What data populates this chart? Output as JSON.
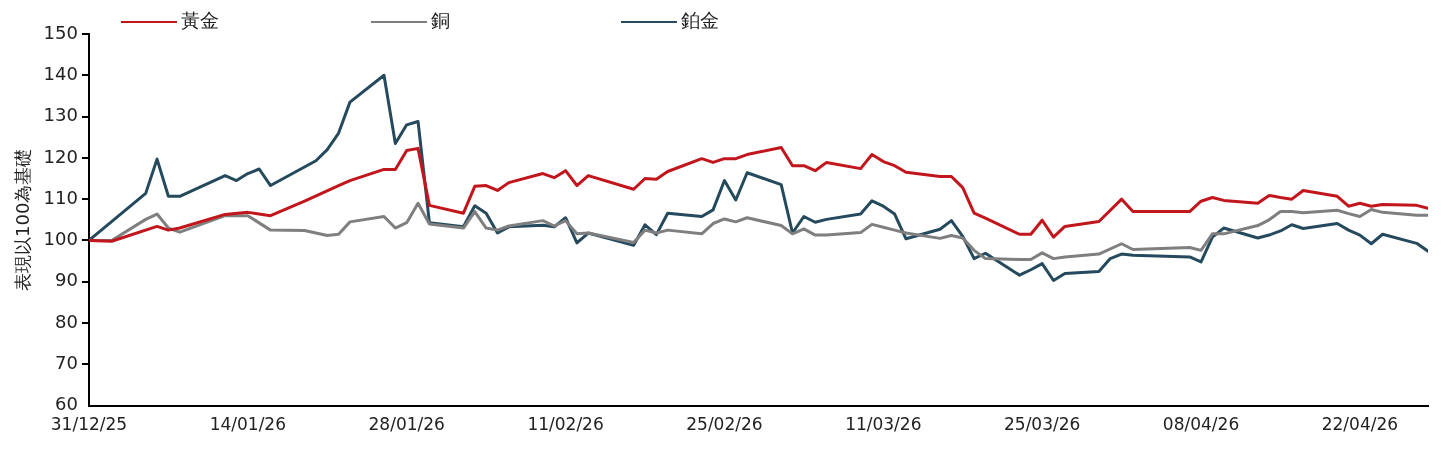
{
  "chart_data": {
    "type": "line",
    "ylabel": "表現以100為基礎",
    "legend": "top left",
    "grid": false,
    "marker": "none",
    "line_style": "solid",
    "xlim": [
      "2025-12-31",
      "2026-04-28"
    ],
    "xticks": [
      {
        "value": "2025-12-31",
        "label": "31/12/25"
      },
      {
        "value": "2026-01-14",
        "label": "14/01/26"
      },
      {
        "value": "2026-01-28",
        "label": "28/01/26"
      },
      {
        "value": "2026-02-11",
        "label": "11/02/26"
      },
      {
        "value": "2026-02-25",
        "label": "25/02/26"
      },
      {
        "value": "2026-03-11",
        "label": "11/03/26"
      },
      {
        "value": "2026-03-25",
        "label": "25/03/26"
      },
      {
        "value": "2026-04-08",
        "label": "08/04/26"
      },
      {
        "value": "2026-04-22",
        "label": "22/04/26"
      }
    ],
    "ylim": [
      60,
      150
    ],
    "yticks": [
      60,
      70,
      80,
      90,
      100,
      110,
      120,
      130,
      140,
      150
    ],
    "series": [
      {
        "name": "黃金",
        "color": "#c0161c",
        "x": [
          "2025-12-31",
          "2026-01-02",
          "2026-01-06",
          "2026-01-07",
          "2026-01-08",
          "2026-01-12",
          "2026-01-14",
          "2026-01-16",
          "2026-01-19",
          "2026-01-22",
          "2026-01-23",
          "2026-01-26",
          "2026-01-27",
          "2026-01-28",
          "2026-01-29",
          "2026-01-30",
          "2026-02-02",
          "2026-02-03",
          "2026-02-04",
          "2026-02-05",
          "2026-02-06",
          "2026-02-09",
          "2026-02-10",
          "2026-02-11",
          "2026-02-12",
          "2026-02-13",
          "2026-02-17",
          "2026-02-18",
          "2026-02-19",
          "2026-02-20",
          "2026-02-23",
          "2026-02-24",
          "2026-02-25",
          "2026-02-26",
          "2026-02-27",
          "2026-03-02",
          "2026-03-03",
          "2026-03-04",
          "2026-03-05",
          "2026-03-06",
          "2026-03-09",
          "2026-03-10",
          "2026-03-11",
          "2026-03-12",
          "2026-03-13",
          "2026-03-16",
          "2026-03-17",
          "2026-03-18",
          "2026-03-19",
          "2026-03-20",
          "2026-03-23",
          "2026-03-24",
          "2026-03-25",
          "2026-03-26",
          "2026-03-27",
          "2026-03-30",
          "2026-04-01",
          "2026-04-02",
          "2026-04-07",
          "2026-04-08",
          "2026-04-09",
          "2026-04-10",
          "2026-04-13",
          "2026-04-14",
          "2026-04-15",
          "2026-04-16",
          "2026-04-17",
          "2026-04-20",
          "2026-04-21",
          "2026-04-22",
          "2026-04-23",
          "2026-04-24",
          "2026-04-27",
          "2026-04-28"
        ],
        "values": [
          100,
          99.8,
          103.4,
          102.5,
          103,
          106.3,
          106.8,
          106,
          109.5,
          113.3,
          114.5,
          117.2,
          117.2,
          121.8,
          122.3,
          108.5,
          106.6,
          113.1,
          113.3,
          112.1,
          114,
          116.2,
          115.2,
          116.9,
          113.3,
          115.7,
          112.4,
          115,
          114.8,
          116.7,
          119.8,
          118.9,
          119.8,
          119.8,
          120.8,
          122.5,
          118.1,
          118.1,
          116.9,
          118.9,
          117.4,
          120.8,
          119.1,
          118.1,
          116.5,
          115.5,
          115.5,
          112.8,
          106.6,
          105.4,
          101.5,
          101.5,
          104.9,
          100.8,
          103.4,
          104.6,
          110,
          107,
          107,
          109.5,
          110.4,
          109.7,
          109,
          110.9,
          110.4,
          110,
          112.1,
          110.7,
          108.3,
          109,
          108.3,
          108.7,
          108.5,
          107.8
        ]
      },
      {
        "name": "銅",
        "color": "#7f7f7f",
        "x": [
          "2025-12-31",
          "2026-01-02",
          "2026-01-05",
          "2026-01-06",
          "2026-01-07",
          "2026-01-08",
          "2026-01-12",
          "2026-01-14",
          "2026-01-16",
          "2026-01-19",
          "2026-01-21",
          "2026-01-22",
          "2026-01-23",
          "2026-01-26",
          "2026-01-27",
          "2026-01-28",
          "2026-01-29",
          "2026-01-30",
          "2026-02-02",
          "2026-02-03",
          "2026-02-04",
          "2026-02-05",
          "2026-02-06",
          "2026-02-09",
          "2026-02-10",
          "2026-02-11",
          "2026-02-12",
          "2026-02-13",
          "2026-02-17",
          "2026-02-18",
          "2026-02-19",
          "2026-02-20",
          "2026-02-23",
          "2026-02-24",
          "2026-02-25",
          "2026-02-26",
          "2026-02-27",
          "2026-03-02",
          "2026-03-03",
          "2026-03-04",
          "2026-03-05",
          "2026-03-06",
          "2026-03-09",
          "2026-03-10",
          "2026-03-11",
          "2026-03-12",
          "2026-03-13",
          "2026-03-16",
          "2026-03-17",
          "2026-03-18",
          "2026-03-19",
          "2026-03-20",
          "2026-03-23",
          "2026-03-24",
          "2026-03-25",
          "2026-03-26",
          "2026-03-27",
          "2026-03-30",
          "2026-04-01",
          "2026-04-02",
          "2026-04-07",
          "2026-04-08",
          "2026-04-09",
          "2026-04-10",
          "2026-04-13",
          "2026-04-14",
          "2026-04-15",
          "2026-04-16",
          "2026-04-17",
          "2026-04-20",
          "2026-04-21",
          "2026-04-22",
          "2026-04-23",
          "2026-04-24",
          "2026-04-27",
          "2026-04-28"
        ],
        "values": [
          100,
          100,
          105.1,
          106.4,
          103,
          102,
          106,
          106,
          102.5,
          102.4,
          101.2,
          101.5,
          104.5,
          105.8,
          103,
          104.3,
          109,
          104,
          103,
          107,
          103,
          102.5,
          103.5,
          104.8,
          103.5,
          104.8,
          101.6,
          101.8,
          99.5,
          102.5,
          101.8,
          102.5,
          101.6,
          104.1,
          105.2,
          104.5,
          105.5,
          103.6,
          101.6,
          102.8,
          101.3,
          101.3,
          101.9,
          103.9,
          103.2,
          102.5,
          101.8,
          100.5,
          101.2,
          100.6,
          97.6,
          95.6,
          95.4,
          95.4,
          97,
          95.6,
          96,
          96.7,
          99.2,
          97.8,
          98.3,
          97.6,
          101.6,
          101.6,
          103.6,
          105,
          107,
          107,
          106.7,
          107.3,
          106.5,
          105.8,
          107.5,
          106.8,
          106.1,
          106.1
        ]
      },
      {
        "name": "鉑金",
        "color": "#254a5d",
        "x": [
          "2025-12-31",
          "2026-01-05",
          "2026-01-06",
          "2026-01-07",
          "2026-01-08",
          "2026-01-12",
          "2026-01-13",
          "2026-01-14",
          "2026-01-15",
          "2026-01-16",
          "2026-01-20",
          "2026-01-21",
          "2026-01-22",
          "2026-01-23",
          "2026-01-26",
          "2026-01-27",
          "2026-01-28",
          "2026-01-29",
          "2026-01-30",
          "2026-02-02",
          "2026-02-03",
          "2026-02-04",
          "2026-02-05",
          "2026-02-06",
          "2026-02-09",
          "2026-02-10",
          "2026-02-11",
          "2026-02-12",
          "2026-02-13",
          "2026-02-17",
          "2026-02-18",
          "2026-02-19",
          "2026-02-20",
          "2026-02-23",
          "2026-02-24",
          "2026-02-25",
          "2026-02-26",
          "2026-02-27",
          "2026-03-02",
          "2026-03-03",
          "2026-03-04",
          "2026-03-05",
          "2026-03-06",
          "2026-03-09",
          "2026-03-10",
          "2026-03-11",
          "2026-03-12",
          "2026-03-13",
          "2026-03-16",
          "2026-03-17",
          "2026-03-18",
          "2026-03-19",
          "2026-03-20",
          "2026-03-23",
          "2026-03-24",
          "2026-03-25",
          "2026-03-26",
          "2026-03-27",
          "2026-03-30",
          "2026-03-31",
          "2026-04-01",
          "2026-04-02",
          "2026-04-07",
          "2026-04-08",
          "2026-04-09",
          "2026-04-10",
          "2026-04-13",
          "2026-04-14",
          "2026-04-15",
          "2026-04-16",
          "2026-04-17",
          "2026-04-20",
          "2026-04-21",
          "2026-04-22",
          "2026-04-23",
          "2026-04-24",
          "2026-04-27",
          "2026-04-28"
        ],
        "values": [
          100,
          111.4,
          119.7,
          110.7,
          110.7,
          115.7,
          114.5,
          116.2,
          117.3,
          113.3,
          119.3,
          122,
          126,
          133.5,
          140,
          123.5,
          128,
          128.8,
          104.3,
          103.3,
          108.4,
          106.6,
          101.8,
          103.3,
          103.7,
          103.3,
          105.5,
          99.4,
          101.8,
          98.8,
          103.8,
          101.4,
          106.6,
          105.8,
          107.4,
          114.5,
          109.8,
          116.4,
          113.5,
          101.8,
          105.8,
          104.4,
          105.1,
          106.4,
          109.6,
          108.3,
          106.4,
          100.4,
          102.7,
          104.8,
          101,
          95.6,
          96.9,
          91.6,
          92.9,
          94.4,
          90.3,
          92,
          92.5,
          95.6,
          96.7,
          96.4,
          96,
          94.8,
          100.8,
          103,
          100.6,
          101.3,
          102.3,
          103.8,
          102.9,
          104.1,
          102.5,
          101.3,
          99.2,
          101.5,
          99.3,
          97.4
        ]
      }
    ]
  }
}
